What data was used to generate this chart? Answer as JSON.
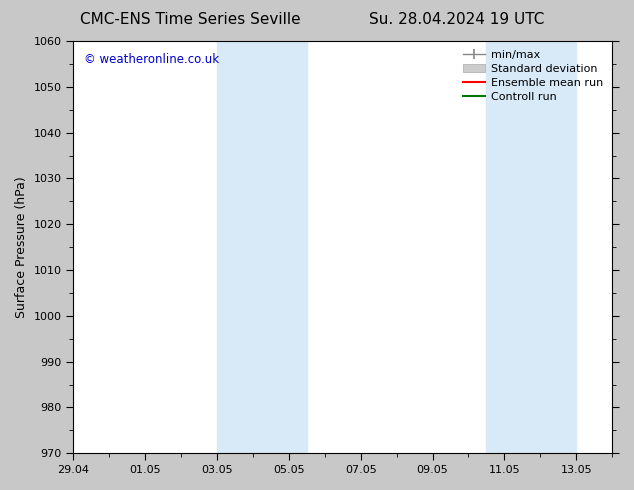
{
  "title_left": "CMC-ENS Time Series Seville",
  "title_right": "Su. 28.04.2024 19 UTC",
  "ylabel": "Surface Pressure (hPa)",
  "ylim": [
    970,
    1060
  ],
  "yticks": [
    970,
    980,
    990,
    1000,
    1010,
    1020,
    1030,
    1040,
    1050,
    1060
  ],
  "xlabel_ticks": [
    "29.04",
    "01.05",
    "03.05",
    "05.05",
    "07.05",
    "09.05",
    "11.05",
    "13.05"
  ],
  "x_num_ticks": [
    0,
    2,
    4,
    6,
    8,
    10,
    12,
    14
  ],
  "xlim": [
    0,
    15
  ],
  "shaded_bands": [
    {
      "x_start": 4.0,
      "x_end": 6.5
    },
    {
      "x_start": 11.5,
      "x_end": 14.0
    }
  ],
  "watermark": "© weatheronline.co.uk",
  "watermark_color": "#0000cc",
  "background_color": "#c8c8c8",
  "plot_bg_color": "#ffffff",
  "shade_color": "#d8eaf8",
  "title_fontsize": 11,
  "tick_fontsize": 8,
  "ylabel_fontsize": 9,
  "legend_fontsize": 8
}
